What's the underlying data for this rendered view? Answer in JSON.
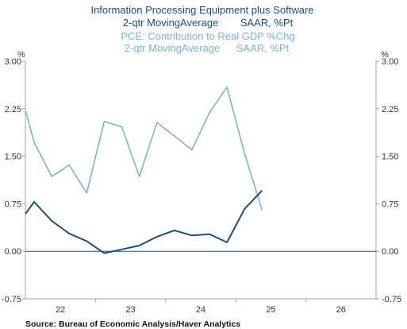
{
  "chart_data": {
    "type": "line",
    "title": {
      "series1_line1": "Information Processing Equipment plus Software",
      "series1_line2_left": "2-qtr MovingAverage",
      "series1_line2_right": "SAAR, %Pt",
      "series2_line1": "PCE: Contribution to Real GDP %Chg",
      "series2_line2_left": "2-qtr MovingAverage",
      "series2_line2_right": "SAAR, %Pt"
    },
    "unit_left": "%",
    "unit_right": "%",
    "ylim": [
      -0.75,
      3.0
    ],
    "xlim": [
      2021.5,
      2026.5
    ],
    "y_ticks": [
      -0.75,
      0.0,
      0.75,
      1.5,
      2.25,
      3.0
    ],
    "y_tick_labels": [
      "-0.75",
      "0.00",
      "0.75",
      "1.50",
      "2.25",
      "3.00"
    ],
    "x_tick_labels": [
      {
        "label": "22",
        "x": 2022
      },
      {
        "label": "23",
        "x": 2023
      },
      {
        "label": "24",
        "x": 2024
      },
      {
        "label": "25",
        "x": 2025
      },
      {
        "label": "26",
        "x": 2026
      }
    ],
    "x_boundaries": [
      2022.5,
      2023.5,
      2024.5,
      2025.5
    ],
    "series": [
      {
        "color": "#7fb3c8",
        "x": [
          2021.5,
          2021.625,
          2021.875,
          2022.125,
          2022.375,
          2022.625,
          2022.875,
          2023.125,
          2023.375,
          2023.625,
          2023.875,
          2024.125,
          2024.375,
          2024.625,
          2024.875
        ],
        "values": [
          2.23,
          1.72,
          1.18,
          1.36,
          0.92,
          2.05,
          1.96,
          1.18,
          2.03,
          1.82,
          1.6,
          2.19,
          2.59,
          1.54,
          0.65
        ]
      },
      {
        "color": "#1f4e79",
        "x": [
          2021.5,
          2021.625,
          2021.875,
          2022.125,
          2022.375,
          2022.625,
          2022.875,
          2023.125,
          2023.375,
          2023.625,
          2023.875,
          2024.125,
          2024.375,
          2024.625,
          2024.875
        ],
        "values": [
          0.59,
          0.78,
          0.48,
          0.28,
          0.16,
          -0.03,
          0.03,
          0.09,
          0.23,
          0.33,
          0.25,
          0.27,
          0.14,
          0.67,
          0.96
        ]
      }
    ],
    "source": "Source:  Bureau of Economic Analysis/Haver Analytics"
  }
}
